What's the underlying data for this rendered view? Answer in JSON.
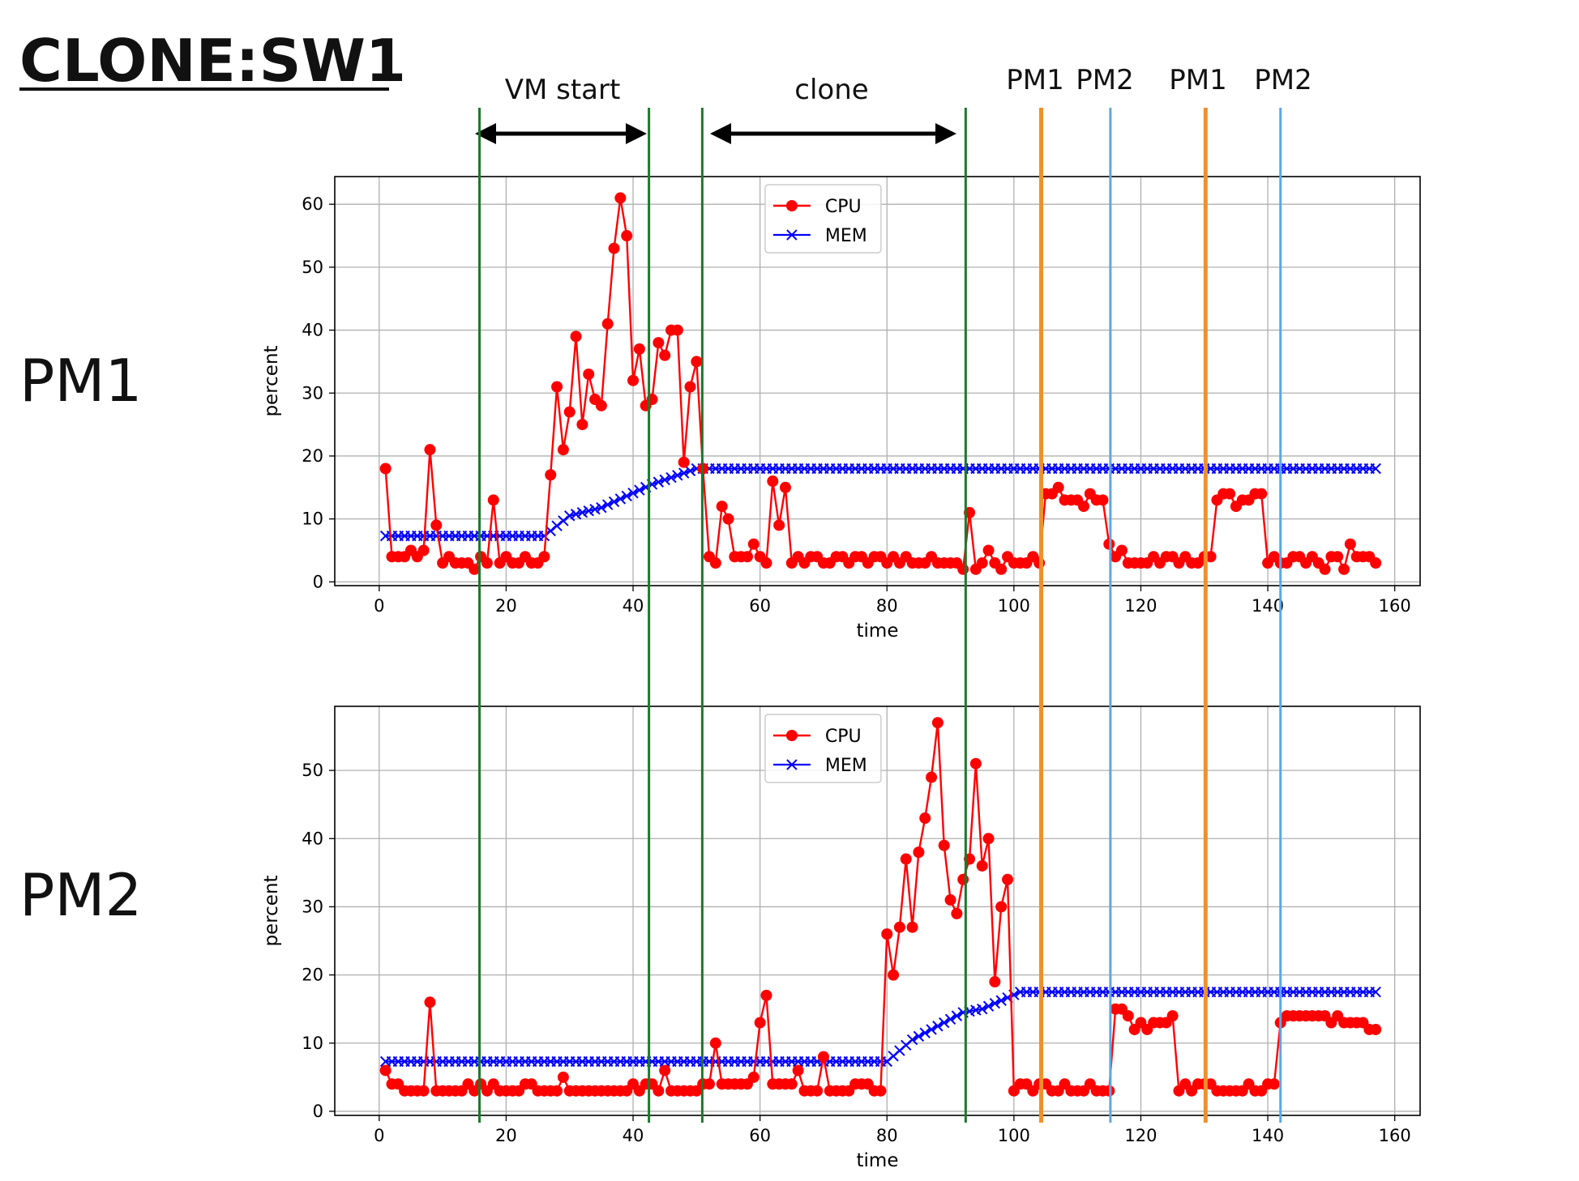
{
  "title": "CLONE:SW1",
  "phase_labels": {
    "vm_start": "VM start",
    "clone": "clone",
    "migrations": [
      "PM1",
      "PM2",
      "PM1",
      "PM2"
    ]
  },
  "row_labels": [
    "PM1",
    "PM2"
  ],
  "colors": {
    "cpu": "#ff0000",
    "mem": "#0000ff",
    "phase_line": "#1a7a2a",
    "migration_pm1": "#f0902a",
    "migration_pm2": "#5aa8e6",
    "grid": "#b0b0b0"
  },
  "chart_data": [
    {
      "type": "line",
      "panel": "PM1",
      "xlabel": "time",
      "ylabel": "percent",
      "xlim": [
        -7,
        164
      ],
      "ylim": [
        -0.6,
        64.4
      ],
      "xticks": [
        0,
        20,
        40,
        60,
        80,
        100,
        120,
        140,
        160
      ],
      "yticks": [
        0,
        10,
        20,
        30,
        40,
        50,
        60
      ],
      "grid": true,
      "legend": "top-center",
      "series": [
        {
          "name": "CPU",
          "marker": "circle",
          "x": [
            1,
            2,
            3,
            4,
            5,
            6,
            7,
            8,
            9,
            10,
            11,
            12,
            13,
            14,
            15,
            16,
            17,
            18,
            19,
            20,
            21,
            22,
            23,
            24,
            25,
            26,
            27,
            28,
            29,
            30,
            31,
            32,
            33,
            34,
            35,
            36,
            37,
            38,
            39,
            40,
            41,
            42,
            43,
            44,
            45,
            46,
            47,
            48,
            49,
            50,
            51,
            52,
            53,
            54,
            55,
            56,
            57,
            58,
            59,
            60,
            61,
            62,
            63,
            64,
            65,
            66,
            67,
            68,
            69,
            70,
            71,
            72,
            73,
            74,
            75,
            76,
            77,
            78,
            79,
            80,
            81,
            82,
            83,
            84,
            85,
            86,
            87,
            88,
            89,
            90,
            91,
            92,
            93,
            94,
            95,
            96,
            97,
            98,
            99,
            100,
            101,
            102,
            103,
            104,
            105,
            106,
            107,
            108,
            109,
            110,
            111,
            112,
            113,
            114,
            115,
            116,
            117,
            118,
            119,
            120,
            121,
            122,
            123,
            124,
            125,
            126,
            127,
            128,
            129,
            130,
            131,
            132,
            133,
            134,
            135,
            136,
            137,
            138,
            139,
            140,
            141,
            142,
            143,
            144,
            145,
            146,
            147,
            148,
            149,
            150,
            151,
            152,
            153,
            154,
            155,
            156,
            157
          ],
          "values": [
            18,
            4,
            4,
            4,
            5,
            4,
            5,
            21,
            9,
            3,
            4,
            3,
            3,
            3,
            2,
            4,
            3,
            13,
            3,
            4,
            3,
            3,
            4,
            3,
            3,
            4,
            17,
            31,
            21,
            27,
            39,
            25,
            33,
            29,
            28,
            41,
            53,
            61,
            55,
            32,
            37,
            28,
            29,
            38,
            36,
            40,
            40,
            19,
            31,
            35,
            18,
            4,
            3,
            12,
            10,
            4,
            4,
            4,
            6,
            4,
            3,
            16,
            9,
            15,
            3,
            4,
            3,
            4,
            4,
            3,
            3,
            4,
            4,
            3,
            4,
            4,
            3,
            4,
            4,
            3,
            4,
            3,
            4,
            3,
            3,
            3,
            4,
            3,
            3,
            3,
            3,
            2,
            11,
            2,
            3,
            5,
            3,
            2,
            4,
            3,
            3,
            3,
            4,
            3,
            14,
            14,
            15,
            13,
            13,
            13,
            12,
            14,
            13,
            13,
            6,
            4,
            5,
            3,
            3,
            3,
            3,
            4,
            3,
            4,
            4,
            3,
            4,
            3,
            3,
            4,
            4,
            13,
            14,
            14,
            12,
            13,
            13,
            14,
            14,
            3,
            4,
            3,
            3,
            4,
            4,
            3,
            4,
            3,
            2,
            4,
            4,
            2,
            6,
            4,
            4,
            4,
            3
          ]
        },
        {
          "name": "MEM",
          "marker": "x",
          "x": [
            1,
            157
          ],
          "values_breakpoints": [
            [
              1,
              7.3
            ],
            [
              26,
              7.3
            ],
            [
              30,
              10.5
            ],
            [
              35,
              11.8
            ],
            [
              43,
              15.5
            ],
            [
              50,
              18.0
            ],
            [
              157,
              18.0
            ]
          ]
        }
      ]
    },
    {
      "type": "line",
      "panel": "PM2",
      "xlabel": "time",
      "ylabel": "percent",
      "xlim": [
        -7,
        164
      ],
      "ylim": [
        -0.6,
        59.4
      ],
      "xticks": [
        0,
        20,
        40,
        60,
        80,
        100,
        120,
        140,
        160
      ],
      "yticks": [
        0,
        10,
        20,
        30,
        40,
        50
      ],
      "grid": true,
      "legend": "top-center",
      "series": [
        {
          "name": "CPU",
          "marker": "circle",
          "x": [
            1,
            2,
            3,
            4,
            5,
            6,
            7,
            8,
            9,
            10,
            11,
            12,
            13,
            14,
            15,
            16,
            17,
            18,
            19,
            20,
            21,
            22,
            23,
            24,
            25,
            26,
            27,
            28,
            29,
            30,
            31,
            32,
            33,
            34,
            35,
            36,
            37,
            38,
            39,
            40,
            41,
            42,
            43,
            44,
            45,
            46,
            47,
            48,
            49,
            50,
            51,
            52,
            53,
            54,
            55,
            56,
            57,
            58,
            59,
            60,
            61,
            62,
            63,
            64,
            65,
            66,
            67,
            68,
            69,
            70,
            71,
            72,
            73,
            74,
            75,
            76,
            77,
            78,
            79,
            80,
            81,
            82,
            83,
            84,
            85,
            86,
            87,
            88,
            89,
            90,
            91,
            92,
            93,
            94,
            95,
            96,
            97,
            98,
            99,
            100,
            101,
            102,
            103,
            104,
            105,
            106,
            107,
            108,
            109,
            110,
            111,
            112,
            113,
            114,
            115,
            116,
            117,
            118,
            119,
            120,
            121,
            122,
            123,
            124,
            125,
            126,
            127,
            128,
            129,
            130,
            131,
            132,
            133,
            134,
            135,
            136,
            137,
            138,
            139,
            140,
            141,
            142,
            143,
            144,
            145,
            146,
            147,
            148,
            149,
            150,
            151,
            152,
            153,
            154,
            155,
            156,
            157
          ],
          "values": [
            6,
            4,
            4,
            3,
            3,
            3,
            3,
            16,
            3,
            3,
            3,
            3,
            3,
            4,
            3,
            4,
            3,
            4,
            3,
            3,
            3,
            3,
            4,
            4,
            3,
            3,
            3,
            3,
            5,
            3,
            3,
            3,
            3,
            3,
            3,
            3,
            3,
            3,
            3,
            4,
            3,
            4,
            4,
            3,
            6,
            3,
            3,
            3,
            3,
            3,
            4,
            4,
            10,
            4,
            4,
            4,
            4,
            4,
            5,
            13,
            17,
            4,
            4,
            4,
            4,
            6,
            3,
            3,
            3,
            8,
            3,
            3,
            3,
            3,
            4,
            4,
            4,
            3,
            3,
            26,
            20,
            27,
            37,
            27,
            38,
            43,
            49,
            57,
            39,
            31,
            29,
            34,
            37,
            51,
            36,
            40,
            19,
            30,
            34,
            3,
            4,
            4,
            3,
            4,
            4,
            3,
            3,
            4,
            3,
            3,
            3,
            4,
            3,
            3,
            3,
            15,
            15,
            14,
            12,
            13,
            12,
            13,
            13,
            13,
            14,
            3,
            4,
            3,
            4,
            4,
            4,
            3,
            3,
            3,
            3,
            3,
            4,
            3,
            3,
            4,
            4,
            13,
            14,
            14,
            14,
            14,
            14,
            14,
            14,
            13,
            14,
            13,
            13,
            13,
            13,
            12,
            12
          ]
        },
        {
          "name": "MEM",
          "marker": "x",
          "x": [
            1,
            157
          ],
          "values_breakpoints": [
            [
              1,
              7.3
            ],
            [
              80,
              7.3
            ],
            [
              84,
              10.5
            ],
            [
              92,
              14.5
            ],
            [
              95,
              15.0
            ],
            [
              101,
              17.5
            ],
            [
              157,
              17.5
            ]
          ]
        }
      ]
    }
  ],
  "vertical_markers": [
    {
      "role": "phase",
      "x": 15.8,
      "color_key": "phase_line"
    },
    {
      "role": "phase",
      "x": 42.5,
      "color_key": "phase_line"
    },
    {
      "role": "phase",
      "x": 50.9,
      "color_key": "phase_line"
    },
    {
      "role": "phase",
      "x": 92.4,
      "color_key": "phase_line"
    },
    {
      "role": "migration",
      "x": 104.3,
      "color_key": "migration_pm1"
    },
    {
      "role": "migration",
      "x": 115.2,
      "color_key": "migration_pm2"
    },
    {
      "role": "migration",
      "x": 130.2,
      "color_key": "migration_pm1"
    },
    {
      "role": "migration",
      "x": 142.0,
      "color_key": "migration_pm2"
    }
  ]
}
